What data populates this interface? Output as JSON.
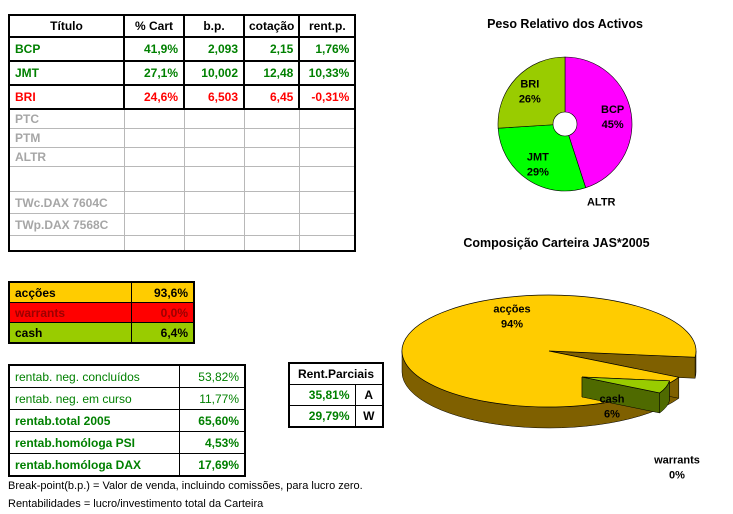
{
  "main_table": {
    "headers": [
      "Título",
      "% Cart",
      "b.p.",
      "cotação",
      "rent.p."
    ],
    "rows": [
      [
        "BCP",
        "41,9%",
        "2,093",
        "2,15",
        "1,76%"
      ],
      [
        "JMT",
        "27,1%",
        "10,002",
        "12,48",
        "10,33%"
      ],
      [
        "BRI",
        "24,6%",
        "6,503",
        "6,45",
        "-0,31%"
      ],
      [
        "PTC",
        "",
        "",
        "",
        ""
      ],
      [
        "PTM",
        "",
        "",
        "",
        ""
      ],
      [
        "ALTR",
        "",
        "",
        "",
        ""
      ],
      [
        "",
        "",
        "",
        "",
        ""
      ],
      [
        "TWc.DAX 7604C",
        "",
        "",
        "",
        ""
      ],
      [
        "TWp.DAX 7568C",
        "",
        "",
        "",
        ""
      ],
      [
        "",
        "",
        "",
        "",
        ""
      ]
    ]
  },
  "alloc_table": {
    "rows": [
      [
        "acções",
        "93,6%"
      ],
      [
        "warrants",
        "0,0%"
      ],
      [
        "cash",
        "6,4%"
      ]
    ]
  },
  "rent_table": {
    "rows": [
      [
        "rentab. neg. concluídos",
        "53,82%"
      ],
      [
        "rentab. neg. em curso",
        "11,77%"
      ],
      [
        "rentab.total 2005",
        "65,60%"
      ],
      [
        "rentab.homóloga PSI",
        "4,53%"
      ],
      [
        "rentab.homóloga DAX",
        "17,69%"
      ]
    ]
  },
  "parciais_table": {
    "title": "Rent.Parciais",
    "rows": [
      [
        "35,81%",
        "A"
      ],
      [
        "29,79%",
        "W"
      ]
    ]
  },
  "footnotes": [
    "Break-point(b.p.) = Valor de venda, incluindo comissões, para lucro zero.",
    "Rentabilidades = lucro/investimento total da Carteira"
  ],
  "colors": {
    "green_text": "#008000",
    "red_text": "#FF0000",
    "gray_text": "#A6A6A6",
    "accoes_bg": "#FFCC00",
    "warrants_bg": "#FF0000",
    "warrants_text": "#9C0000",
    "cash_bg": "#99CC00"
  },
  "chart_data": [
    {
      "type": "pie",
      "title": "Peso Relativo dos Activos",
      "categories": [
        "BCP",
        "ALTR",
        "JMT",
        "BRI"
      ],
      "values": [
        45,
        0,
        29,
        26
      ],
      "colors": [
        "#FF00FF",
        "#FF00FF",
        "#00FF00",
        "#99CC00"
      ],
      "labels": [
        {
          "name": "BCP",
          "pct": "45%",
          "placement": "inside"
        },
        {
          "name": "ALTR",
          "pct": "",
          "placement": "outside",
          "angle": 155,
          "radius_frac": 1.28
        },
        {
          "name": "JMT",
          "pct": "29%",
          "placement": "inside"
        },
        {
          "name": "BRI",
          "pct": "26%",
          "placement": "inside"
        }
      ],
      "start_angle": 0,
      "donut_hole": true,
      "legend": "none"
    },
    {
      "type": "pie",
      "variant": "3d-exploded",
      "title": "Composição Carteira JAS*2005",
      "categories": [
        "acções",
        "cash",
        "warrants"
      ],
      "values": [
        94,
        6,
        0
      ],
      "colors": [
        "#FFCC00",
        "#99CC00",
        "#FF0000"
      ],
      "labels": [
        {
          "name": "acções",
          "pct": "94%"
        },
        {
          "name": "cash",
          "pct": "6%"
        },
        {
          "name": "warrants",
          "pct": "0%"
        }
      ],
      "exploded_slice": "cash",
      "legend": "none"
    }
  ]
}
